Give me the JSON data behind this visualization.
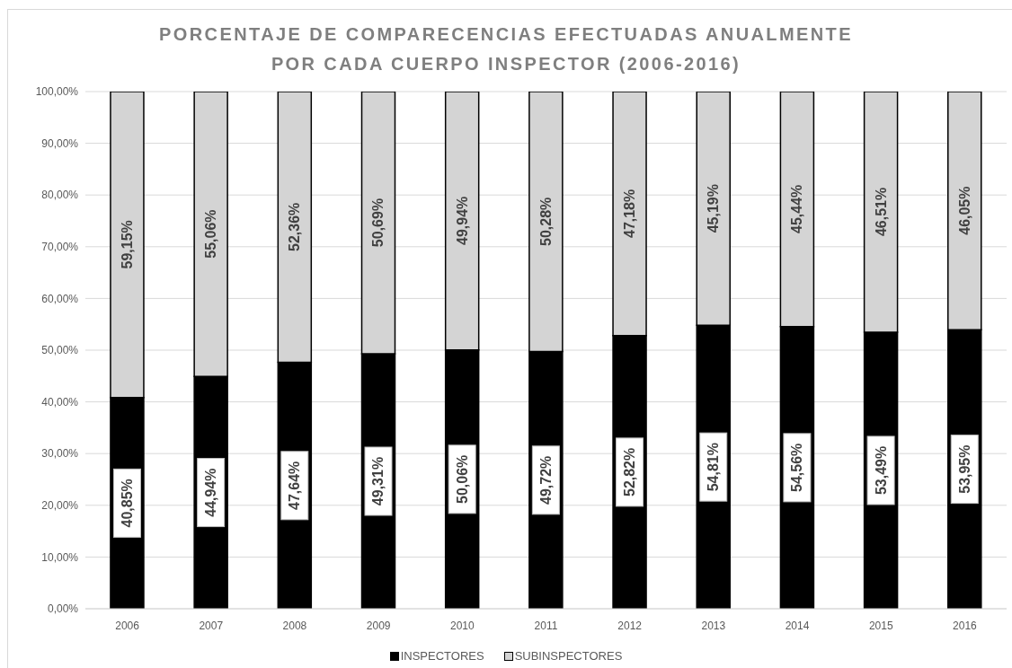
{
  "chart_data": {
    "type": "bar",
    "title": "PORCENTAJE DE COMPARECENCIAS EFECTUADAS ANUALMENTE\nPOR CADA CUERPO INSPECTOR (2006-2016)",
    "categories": [
      "2006",
      "2007",
      "2008",
      "2009",
      "2010",
      "2011",
      "2012",
      "2013",
      "2014",
      "2015",
      "2016"
    ],
    "stacked": true,
    "series": [
      {
        "name": "INSPECTORES",
        "color": "#000000",
        "values": [
          40.85,
          44.94,
          47.64,
          49.31,
          50.06,
          49.72,
          52.82,
          54.81,
          54.56,
          53.49,
          53.95
        ],
        "value_labels": [
          "40,85%",
          "44,94%",
          "47,64%",
          "49,31%",
          "50,06%",
          "49,72%",
          "52,82%",
          "54,81%",
          "54,56%",
          "53,49%",
          "53,95%"
        ]
      },
      {
        "name": "SUBINSPECTORES",
        "color": "#d4d4d4",
        "values": [
          59.15,
          55.06,
          52.36,
          50.69,
          49.94,
          50.28,
          47.18,
          45.19,
          45.44,
          46.51,
          46.05
        ],
        "value_labels": [
          "59,15%",
          "55,06%",
          "52,36%",
          "50,69%",
          "49,94%",
          "50,28%",
          "47,18%",
          "45,19%",
          "45,44%",
          "46,51%",
          "46,05%"
        ]
      }
    ],
    "ylim": [
      0,
      100
    ],
    "yticks": [
      {
        "value": 0,
        "label": "0,00%"
      },
      {
        "value": 10,
        "label": "10,00%"
      },
      {
        "value": 20,
        "label": "20,00%"
      },
      {
        "value": 30,
        "label": "30,00%"
      },
      {
        "value": 40,
        "label": "40,00%"
      },
      {
        "value": 50,
        "label": "50,00%"
      },
      {
        "value": 60,
        "label": "60,00%"
      },
      {
        "value": 70,
        "label": "70,00%"
      },
      {
        "value": 80,
        "label": "80,00%"
      },
      {
        "value": 90,
        "label": "90,00%"
      },
      {
        "value": 100,
        "label": "100,00%"
      }
    ],
    "grid": "y",
    "legend": "bottom"
  }
}
